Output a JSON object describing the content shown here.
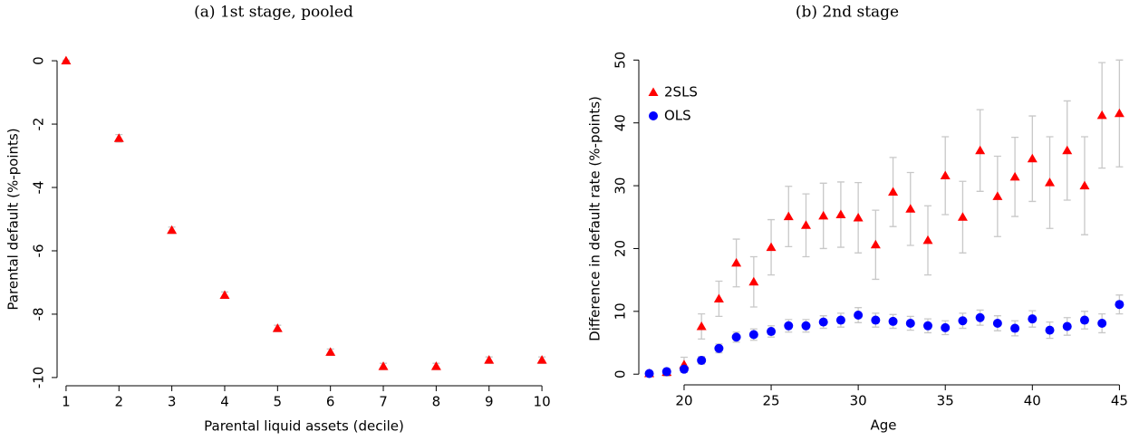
{
  "chart_data": [
    {
      "type": "scatter",
      "title": "(a) 1st stage, pooled",
      "xlabel": "Parental liquid assets (decile)",
      "ylabel": "Parental default (%-points)",
      "xlim": [
        0.83,
        10.17
      ],
      "ylim": [
        -10.26,
        0.26
      ],
      "xticks": [
        1,
        2,
        3,
        4,
        5,
        6,
        7,
        8,
        9,
        10
      ],
      "yticks": [
        0,
        -2,
        -4,
        -6,
        -8,
        -10
      ],
      "series": [
        {
          "color": "#ff0000",
          "marker": "triangle",
          "x": [
            1,
            2,
            3,
            4,
            5,
            6,
            7,
            8,
            9,
            10
          ],
          "values": [
            0,
            -2.45,
            -5.35,
            -7.4,
            -8.45,
            -9.2,
            -9.65,
            -9.65,
            -9.45,
            -9.45
          ],
          "errors": [
            0.02,
            0.12,
            0.1,
            0.1,
            0.1,
            0.1,
            0.1,
            0.1,
            0.1,
            0.1
          ]
        }
      ]
    },
    {
      "type": "scatter",
      "title": "(b) 2nd stage",
      "xlabel": "Age",
      "ylabel": "Difference in default rate (%-points)",
      "xlim": [
        17.4,
        45.5
      ],
      "ylim": [
        -1.7,
        51.2
      ],
      "xticks": [
        20,
        25,
        30,
        35,
        40,
        45
      ],
      "yticks": [
        0,
        10,
        20,
        30,
        40,
        50
      ],
      "legend": "upper left",
      "series": [
        {
          "name": "2SLS",
          "color": "#ff0000",
          "marker": "triangle",
          "x": [
            18,
            19,
            20,
            21,
            22,
            23,
            24,
            25,
            26,
            27,
            28,
            29,
            30,
            31,
            32,
            33,
            34,
            35,
            36,
            37,
            38,
            39,
            40,
            41,
            42,
            43,
            44,
            45
          ],
          "values": [
            0.1,
            0.3,
            1.5,
            7.6,
            12,
            17.7,
            14.7,
            20.2,
            25.1,
            23.7,
            25.2,
            25.4,
            24.9,
            20.6,
            29,
            26.3,
            21.3,
            31.6,
            25,
            35.6,
            28.3,
            31.4,
            34.3,
            30.5,
            35.6,
            30,
            41.2,
            41.5
          ],
          "errors": [
            0.3,
            0.6,
            1.2,
            2,
            2.8,
            3.8,
            4,
            4.4,
            4.8,
            5,
            5.2,
            5.2,
            5.6,
            5.5,
            5.5,
            5.8,
            5.5,
            6.2,
            5.7,
            6.5,
            6.4,
            6.3,
            6.8,
            7.3,
            7.9,
            7.8,
            8.4,
            8.5
          ]
        },
        {
          "name": "OLS",
          "color": "#0000ff",
          "marker": "circle",
          "x": [
            18,
            19,
            20,
            21,
            22,
            23,
            24,
            25,
            26,
            27,
            28,
            29,
            30,
            31,
            32,
            33,
            34,
            35,
            36,
            37,
            38,
            39,
            40,
            41,
            42,
            43,
            44,
            45
          ],
          "values": [
            0.1,
            0.4,
            0.8,
            2.2,
            4.1,
            5.9,
            6.3,
            6.8,
            7.7,
            7.7,
            8.3,
            8.6,
            9.4,
            8.6,
            8.4,
            8.1,
            7.7,
            7.4,
            8.5,
            9,
            8.1,
            7.3,
            8.8,
            7,
            7.6,
            8.6,
            8.1,
            11.1
          ],
          "errors": [
            0.2,
            0.3,
            0.5,
            0.6,
            0.7,
            0.8,
            0.9,
            0.9,
            1,
            1,
            1,
            1.1,
            1.2,
            1.1,
            1.1,
            1.1,
            1.1,
            1.1,
            1.2,
            1.2,
            1.2,
            1.2,
            1.3,
            1.3,
            1.4,
            1.4,
            1.5,
            1.5
          ]
        }
      ]
    }
  ]
}
